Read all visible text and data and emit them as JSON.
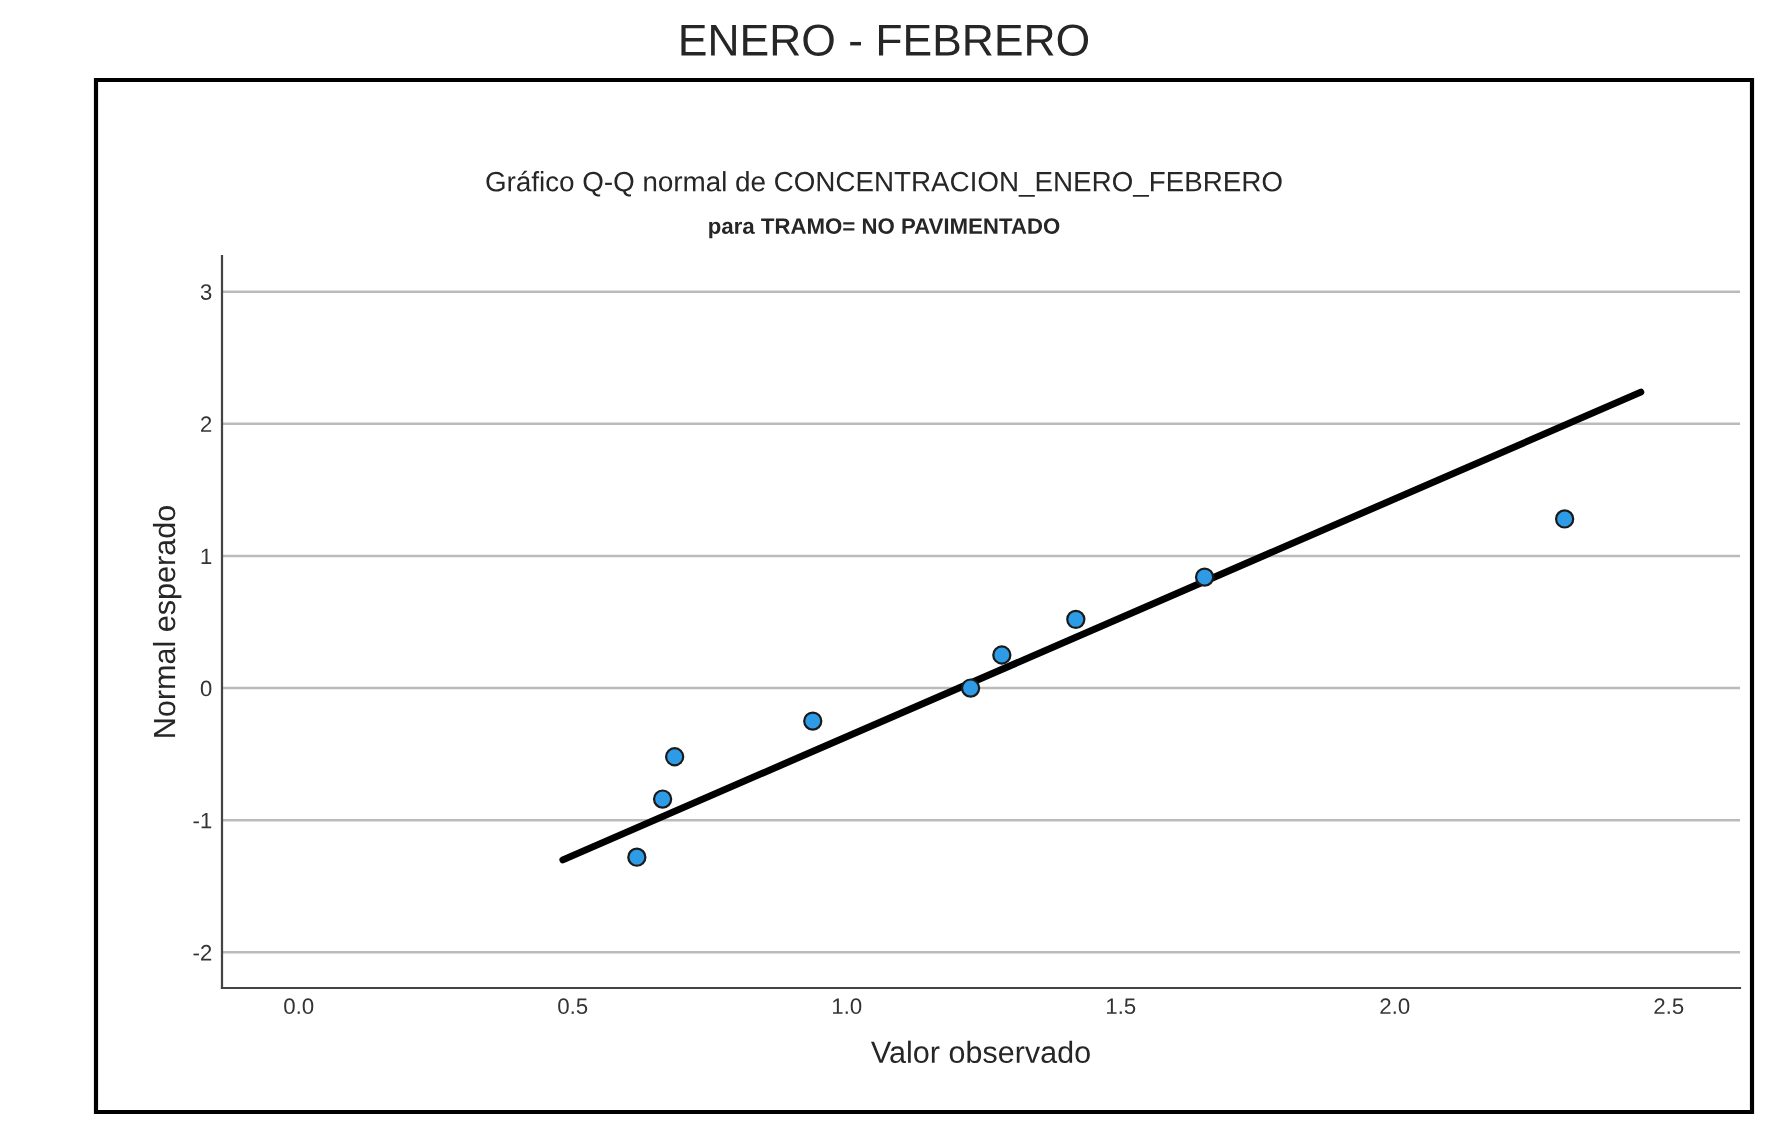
{
  "chart_data": {
    "type": "scatter",
    "title": "Gráfico Q-Q normal de CONCENTRACION_ENERO_FEBRERO",
    "subtitle": "para TRAMO= NO PAVIMENTADO",
    "annotations": [
      "ENERO - FEBRERO"
    ],
    "xlabel": "Valor observado",
    "ylabel": "Normal esperado",
    "series": [
      {
        "color": "#2e9be6",
        "marker": "circle",
        "x": [
          0.617,
          0.664,
          0.686,
          0.938,
          1.226,
          1.283,
          1.418,
          1.653,
          2.31
        ],
        "values": [
          -1.28,
          -0.84,
          -0.52,
          -0.25,
          0,
          0.25,
          0.52,
          0.84,
          1.28
        ]
      },
      {
        "type": "line",
        "color": "#000000",
        "line_style": "solid",
        "x": [
          0.482,
          2.449
        ],
        "values": [
          -1.3,
          2.24
        ]
      }
    ],
    "xlim": [
      -0.14,
      2.63
    ],
    "ylim": [
      -2.27,
      3.27
    ],
    "xticks": [
      {
        "value": 0,
        "label": "0.0"
      },
      {
        "value": 0.5,
        "label": "0.5"
      },
      {
        "value": 1,
        "label": "1.0"
      },
      {
        "value": 1.5,
        "label": "1.5"
      },
      {
        "value": 2,
        "label": "2.0"
      },
      {
        "value": 2.5,
        "label": "2.5"
      }
    ],
    "yticks": [
      -2,
      -1,
      0,
      1,
      2,
      3
    ],
    "grid": "y",
    "legend": false
  }
}
